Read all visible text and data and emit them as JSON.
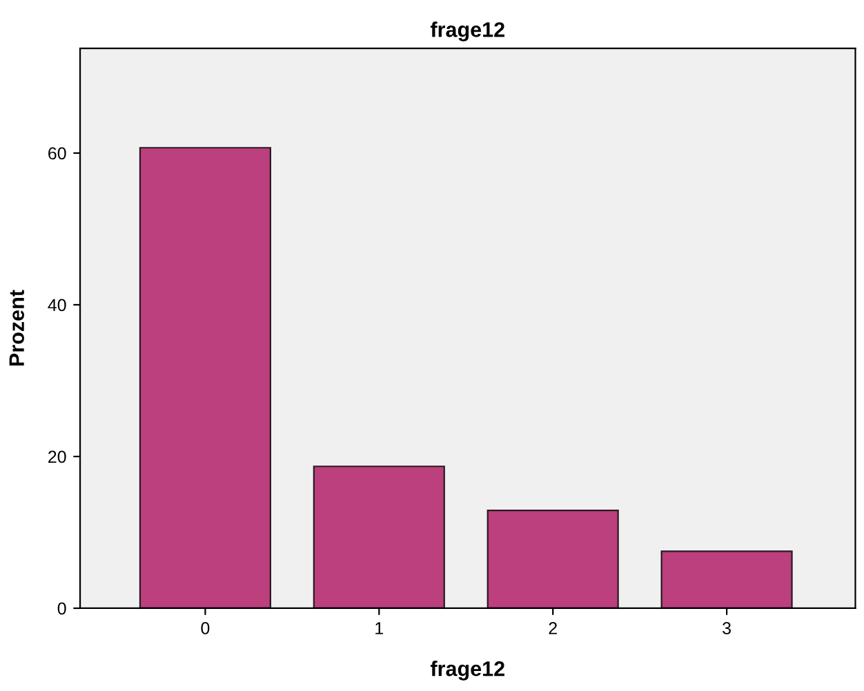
{
  "chart_data": {
    "type": "bar",
    "title": "frage12",
    "xlabel": "frage12",
    "ylabel": "Prozent",
    "categories": [
      "0",
      "1",
      "2",
      "3"
    ],
    "values": [
      60.7,
      18.7,
      12.9,
      7.5
    ],
    "color": "#bc3f7e",
    "ylim": [
      0,
      73.8
    ],
    "yticks": [
      0,
      20,
      40,
      60
    ],
    "grid": false,
    "legend": false
  }
}
